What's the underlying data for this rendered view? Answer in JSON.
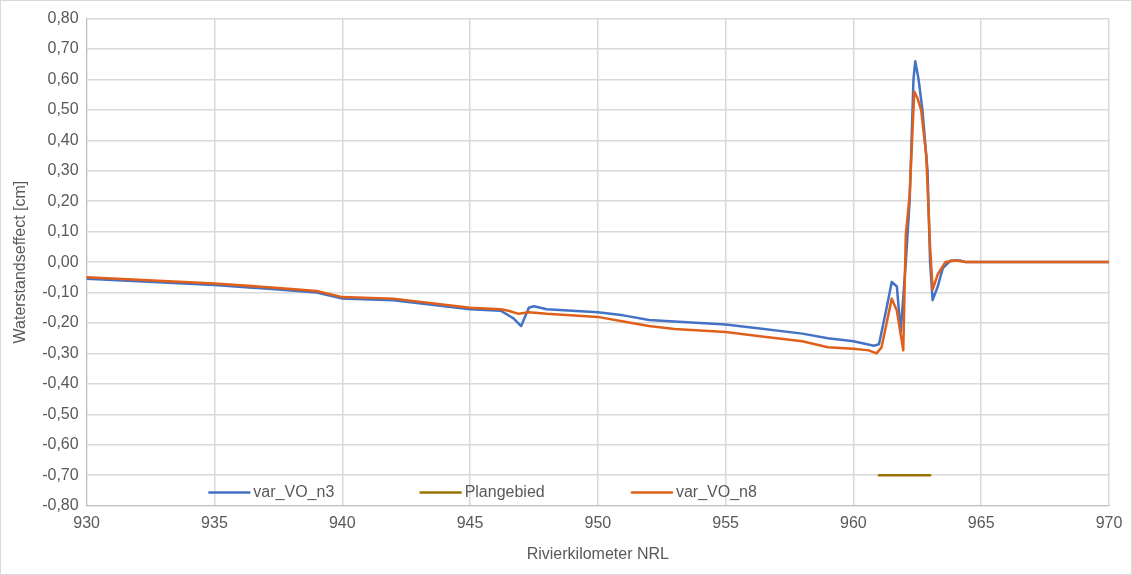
{
  "chart_data": {
    "type": "line",
    "xlabel": "Rivierkilometer NRL",
    "ylabel": "Waterstandseffect [cm]",
    "xlim": [
      930,
      970
    ],
    "xticks": [
      930,
      935,
      940,
      945,
      950,
      955,
      960,
      965,
      970
    ],
    "ylim": [
      -0.8,
      0.8
    ],
    "yticks": [
      {
        "value": 0.8,
        "label": "0,80"
      },
      {
        "value": 0.7,
        "label": "0,70"
      },
      {
        "value": 0.6,
        "label": "0,60"
      },
      {
        "value": 0.5,
        "label": "0,50"
      },
      {
        "value": 0.4,
        "label": "0,40"
      },
      {
        "value": 0.3,
        "label": "0,30"
      },
      {
        "value": 0.2,
        "label": "0,20"
      },
      {
        "value": 0.1,
        "label": "0,10"
      },
      {
        "value": 0,
        "label": "0,00"
      },
      {
        "value": -0.1,
        "label": "-0,10"
      },
      {
        "value": -0.2,
        "label": "-0,20"
      },
      {
        "value": -0.3,
        "label": "-0,30"
      },
      {
        "value": -0.4,
        "label": "-0,40"
      },
      {
        "value": -0.5,
        "label": "-0,50"
      },
      {
        "value": -0.6,
        "label": "-0,60"
      },
      {
        "value": -0.7,
        "label": "-0,70"
      },
      {
        "value": -0.8,
        "label": "-0,80"
      }
    ],
    "grid": true,
    "legend": "bottom",
    "marker": "none",
    "line_style": "solid",
    "series": [
      {
        "name": "var_VO_n3",
        "color": "#4472c4",
        "x": [
          930,
          935,
          937.5,
          939,
          940,
          942,
          945,
          946.2,
          946.7,
          947.0,
          947.3,
          947.5,
          948,
          950,
          951,
          952,
          955,
          958,
          959,
          960,
          960.8,
          961.0,
          961.3,
          961.5,
          961.7,
          961.85,
          962.05,
          962.2,
          962.35,
          962.42,
          962.55,
          962.7,
          962.9,
          963.0,
          963.1,
          963.3,
          963.5,
          963.8,
          964.2,
          964.4,
          967.5,
          970
        ],
        "values": [
          -0.055,
          -0.075,
          -0.09,
          -0.1,
          -0.12,
          -0.125,
          -0.155,
          -0.16,
          -0.185,
          -0.21,
          -0.15,
          -0.145,
          -0.155,
          -0.165,
          -0.175,
          -0.19,
          -0.205,
          -0.235,
          -0.25,
          -0.26,
          -0.275,
          -0.27,
          -0.15,
          -0.065,
          -0.08,
          -0.23,
          0.0,
          0.2,
          0.6,
          0.66,
          0.6,
          0.5,
          0.3,
          0.0,
          -0.125,
          -0.08,
          -0.02,
          0.005,
          0.005,
          0,
          0,
          0
        ]
      },
      {
        "name": "Plangebied",
        "color": "#997300",
        "x": [
          961,
          963
        ],
        "values": [
          -0.7,
          -0.7
        ]
      },
      {
        "name": "var_VO_n8",
        "color": "#e0601a",
        "x": [
          930,
          935,
          937.5,
          939,
          940,
          942,
          945,
          946.2,
          946.5,
          946.9,
          947.3,
          948,
          950,
          951,
          952,
          953,
          955,
          958,
          959,
          960,
          960.6,
          960.9,
          961.1,
          961.5,
          961.7,
          961.95,
          962.05,
          962.2,
          962.38,
          962.5,
          962.65,
          962.85,
          963.0,
          963.1,
          963.3,
          963.6,
          964,
          964.4,
          967.5,
          970
        ],
        "values": [
          -0.05,
          -0.07,
          -0.085,
          -0.095,
          -0.115,
          -0.12,
          -0.15,
          -0.155,
          -0.16,
          -0.17,
          -0.165,
          -0.17,
          -0.18,
          -0.195,
          -0.21,
          -0.22,
          -0.23,
          -0.26,
          -0.28,
          -0.285,
          -0.29,
          -0.3,
          -0.28,
          -0.12,
          -0.16,
          -0.29,
          0.09,
          0.22,
          0.56,
          0.54,
          0.5,
          0.35,
          0.05,
          -0.09,
          -0.04,
          0.0,
          0.005,
          0,
          0,
          0
        ]
      }
    ]
  }
}
